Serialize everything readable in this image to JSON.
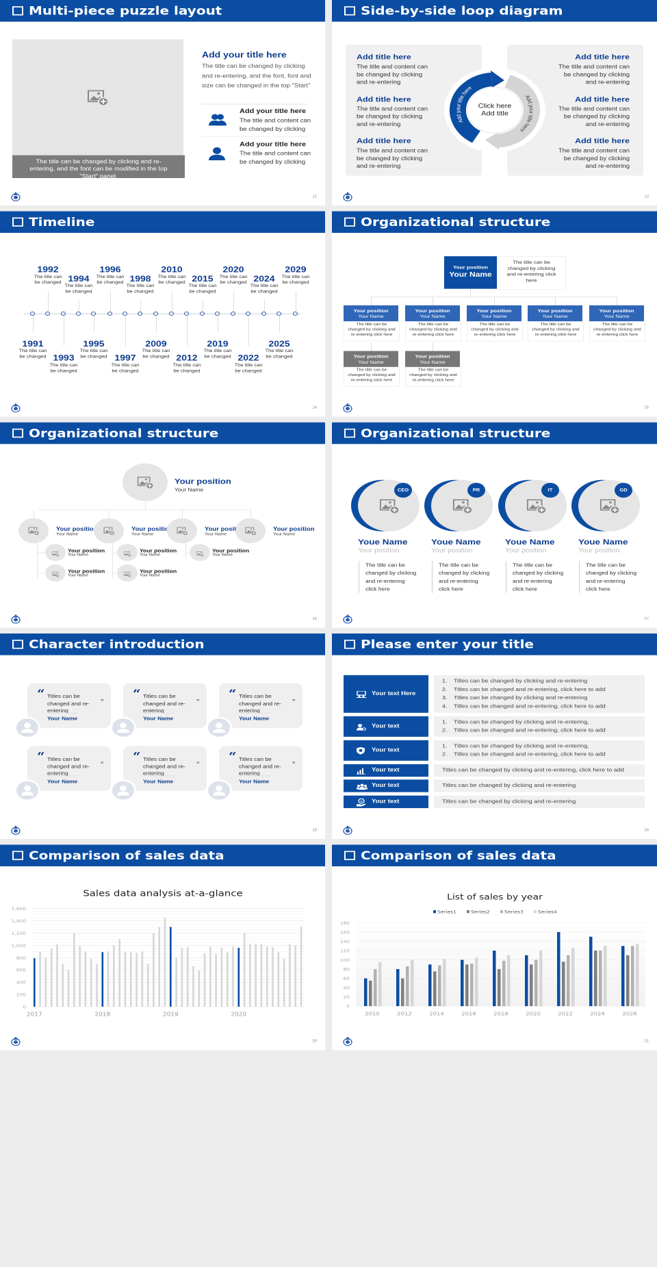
{
  "theme": {
    "accent": "#0b4da2",
    "accent_light": "#2f66b8",
    "panel": "#f0f0f0",
    "gray_box": "#777777"
  },
  "slides": [
    {
      "title": "Multi-piece puzzle layout",
      "page": "12",
      "image_caption": "The title can be changed by clicking and re-entering, and the font can be modified in the top \"Start\" panel.",
      "heading": "Add your title here",
      "body": "The title can be changed by clicking and re-entering, and the font, font and size can be changed in the top \"Start\"",
      "items": [
        {
          "icon": "users-icon",
          "title": "Add your title here",
          "text": "The title and content can be changed by clicking"
        },
        {
          "icon": "user-icon",
          "title": "Add your title here",
          "text": "The title and content can be changed by clicking"
        }
      ]
    },
    {
      "title": "Side-by-side loop diagram",
      "page": "13",
      "left": [
        {
          "title": "Add title here",
          "text": "The title and content can be changed by clicking and re-entering"
        },
        {
          "title": "Add title here",
          "text": "The title and content can be changed by clicking and re-entering"
        },
        {
          "title": "Add title here",
          "text": "The title and content can be changed by clicking and re-entering"
        }
      ],
      "right": [
        {
          "title": "Add title here",
          "text": "The title and content can be changed by clicking and re-entering"
        },
        {
          "title": "Add title here",
          "text": "The title and content can be changed by clicking and re-entering"
        },
        {
          "title": "Add title here",
          "text": "The title and content can be changed by clicking and re-entering"
        }
      ],
      "center": [
        "Click here",
        "Add title"
      ],
      "arrow_labels": [
        "Add your title here",
        "Add your title here"
      ]
    },
    {
      "title": "Timeline",
      "page": "14",
      "events": [
        {
          "year": "1991",
          "caption": "The title can be changed"
        },
        {
          "year": "1992",
          "caption": "The title can be changed"
        },
        {
          "year": "1993",
          "caption": "The title can be changed"
        },
        {
          "year": "1994",
          "caption": "The title can be changed"
        },
        {
          "year": "1995",
          "caption": "The title can be changed"
        },
        {
          "year": "1996",
          "caption": "The title can be changed"
        },
        {
          "year": "1997",
          "caption": "The title can be changed"
        },
        {
          "year": "1998",
          "caption": "The title can be changed"
        },
        {
          "year": "2009",
          "caption": "The title can be changed"
        },
        {
          "year": "2010",
          "caption": "The title can be changed"
        },
        {
          "year": "2012",
          "caption": "The title can be changed"
        },
        {
          "year": "2015",
          "caption": "The title can be changed"
        },
        {
          "year": "2019",
          "caption": "The title can be changed"
        },
        {
          "year": "2020",
          "caption": "The title can be changed"
        },
        {
          "year": "2022",
          "caption": "The title can be changed"
        },
        {
          "year": "2024",
          "caption": "The title can be changed"
        },
        {
          "year": "2025",
          "caption": "The title can be changed"
        },
        {
          "year": "2029",
          "caption": "The title can be changed"
        }
      ]
    },
    {
      "title": "Organizational structure",
      "page": "15",
      "head": {
        "position": "Your position",
        "name": "Your Name",
        "note": "The title can be changed by clicking and re-entering click here"
      },
      "members": [
        {
          "position": "Your position",
          "name": "Your Name",
          "note": "The title can be changed by clicking and re-entering click here"
        },
        {
          "position": "Your position",
          "name": "Your Name",
          "note": "The title can be changed by clicking and re-entering click here"
        },
        {
          "position": "Your position",
          "name": "Your Name",
          "note": "The title can be changed by clicking and re-entering click here"
        },
        {
          "position": "Your position",
          "name": "Your Name",
          "note": "The title can be changed by clicking and re-entering click here"
        },
        {
          "position": "Your position",
          "name": "Your Name",
          "note": "The title can be changed by clicking and re-entering click here"
        }
      ],
      "sub_members": [
        {
          "position": "Your position",
          "name": "Your Name",
          "note": "The title can be changed by clicking and re-entering click here"
        },
        {
          "position": "Your position",
          "name": "Your Name",
          "note": "The title can be changed by clicking and re-entering click here"
        }
      ]
    },
    {
      "title": "Organizational structure",
      "page": "16",
      "head": {
        "position": "Your position",
        "name": "Your Name"
      },
      "branches": [
        {
          "position": "Your position",
          "name": "Your Name",
          "subs": [
            {
              "position": "Your position",
              "name": "Your Name"
            },
            {
              "position": "Your position",
              "name": "Your Name"
            }
          ]
        },
        {
          "position": "Your position",
          "name": "Your Name",
          "subs": [
            {
              "position": "Your position",
              "name": "Your Name"
            },
            {
              "position": "Your position",
              "name": "Your Name"
            }
          ]
        },
        {
          "position": "Your position",
          "name": "Your Name",
          "subs": [
            {
              "position": "Your position",
              "name": "Your Name"
            }
          ]
        },
        {
          "position": "Your position",
          "name": "Your Name",
          "subs": []
        }
      ]
    },
    {
      "title": "Organizational structure",
      "page": "17",
      "people": [
        {
          "badge": "CEO",
          "name": "Youe Name",
          "position": "Your position",
          "text": "The title can be changed by clicking and re-entering click here"
        },
        {
          "badge": "PR",
          "name": "Youe Name",
          "position": "Your position",
          "text": "The title can be changed by clicking and re-entering click here"
        },
        {
          "badge": "IT",
          "name": "Youe Name",
          "position": "Your position",
          "text": "The title can be changed by clicking and re-entering click here"
        },
        {
          "badge": "GD",
          "name": "Youe Name",
          "position": "Your position",
          "text": "The title can be changed by clicking and re-entering click here"
        }
      ]
    },
    {
      "title": "Character introduction",
      "page": "18",
      "cards": [
        {
          "quote": "Titles can be changed and re-entering",
          "name": "Your Name"
        },
        {
          "quote": "Titles can be changed and re-entering",
          "name": "Your Name"
        },
        {
          "quote": "Titles can be changed and re-entering",
          "name": "Your Name"
        },
        {
          "quote": "Titles can be changed and re-entering",
          "name": "Your Name"
        },
        {
          "quote": "Titles can be changed and re-entering",
          "name": "Your Name"
        },
        {
          "quote": "Titles can be changed and re-entering",
          "name": "Your Name"
        }
      ]
    },
    {
      "title": "Please enter your title",
      "page": "19",
      "rows": [
        {
          "icon": "presentation-icon",
          "label": "Your text Here",
          "numbered": true,
          "lines": [
            "Titles can be changed by clicking and re-entering",
            "Titles can be changed and re-entering, click here to add",
            "Titles can be changed by clicking and re-entering",
            "Titles can be changed and re-entering, click here to add"
          ]
        },
        {
          "icon": "user-settings-icon",
          "label": "Your text",
          "numbered": true,
          "lines": [
            "Titles can be changed by clicking and re-entering,",
            "Titles can be changed and re-entering, click here to add"
          ]
        },
        {
          "icon": "shield-icon",
          "label": "Your text",
          "numbered": true,
          "lines": [
            "Titles can be changed by clicking and re-entering,",
            "Titles can be changed and re-entering, click here to add"
          ]
        },
        {
          "icon": "bar-chart-icon",
          "label": "Your text",
          "numbered": false,
          "lines": [
            "Titles can be changed by clicking and re-entering, click here to add"
          ]
        },
        {
          "icon": "team-icon",
          "label": "Your text",
          "numbered": false,
          "lines": [
            "Titles can be changed by clicking and re-entering"
          ]
        },
        {
          "icon": "hand-heart-icon",
          "label": "Your text",
          "numbered": false,
          "lines": [
            "Titles can be changed by clicking and re-entering"
          ]
        }
      ]
    },
    {
      "title": "Comparison of sales data",
      "page": "20"
    },
    {
      "title": "Comparison of sales data",
      "page": "21"
    }
  ],
  "chart_data": [
    {
      "type": "bar",
      "title": "Sales data analysis at-a-glance",
      "xlabel": "",
      "ylabel": "",
      "ylim": [
        0,
        1600
      ],
      "yticks": [
        "0",
        "200",
        "400",
        "600",
        "800",
        "1,000",
        "1,200",
        "1,400",
        "1,600"
      ],
      "x_tick_labels": [
        "2017",
        "2018",
        "2019",
        "2020"
      ],
      "highlight_color": "#0b4da2",
      "bar_color": "#d6d6d6",
      "grid": true,
      "values": [
        790,
        900,
        800,
        950,
        1020,
        700,
        600,
        1200,
        990,
        900,
        780,
        700,
        890,
        900,
        1000,
        1100,
        900,
        900,
        880,
        900,
        700,
        1200,
        1300,
        1450,
        1300,
        800,
        960,
        970,
        660,
        590,
        870,
        980,
        860,
        960,
        890,
        980,
        960,
        1200,
        1020,
        1030,
        1020,
        980,
        970,
        890,
        780,
        1020,
        1000,
        1300
      ]
    },
    {
      "type": "bar",
      "title": "List of sales by year",
      "xlabel": "",
      "ylabel": "",
      "ylim": [
        0,
        180
      ],
      "yticks": [
        "0",
        "20",
        "40",
        "60",
        "80",
        "100",
        "120",
        "140",
        "160",
        "180"
      ],
      "legend": "top",
      "grid": true,
      "categories": [
        "2010",
        "2012",
        "2014",
        "2016",
        "2018",
        "2020",
        "2022",
        "2024",
        "2026"
      ],
      "series": [
        {
          "name": "Series1",
          "color": "#0b4da2",
          "values": [
            60,
            80,
            90,
            100,
            120,
            110,
            160,
            150,
            130
          ]
        },
        {
          "name": "Series2",
          "color": "#7f7f7f",
          "values": [
            55,
            60,
            75,
            90,
            80,
            90,
            96,
            120,
            110
          ]
        },
        {
          "name": "Series3",
          "color": "#b2b2b2",
          "values": [
            80,
            86,
            88,
            92,
            98,
            100,
            110,
            120,
            130
          ]
        },
        {
          "name": "Series4",
          "color": "#d6d6d6",
          "values": [
            95,
            100,
            102,
            105,
            110,
            120,
            126,
            130,
            135
          ]
        }
      ]
    }
  ]
}
